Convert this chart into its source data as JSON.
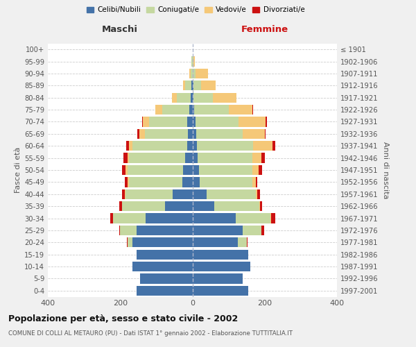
{
  "age_groups": [
    "0-4",
    "5-9",
    "10-14",
    "15-19",
    "20-24",
    "25-29",
    "30-34",
    "35-39",
    "40-44",
    "45-49",
    "50-54",
    "55-59",
    "60-64",
    "65-69",
    "70-74",
    "75-79",
    "80-84",
    "85-89",
    "90-94",
    "95-99",
    "100+"
  ],
  "birth_years": [
    "1997-2001",
    "1992-1996",
    "1987-1991",
    "1982-1986",
    "1977-1981",
    "1972-1976",
    "1967-1971",
    "1962-1966",
    "1957-1961",
    "1952-1956",
    "1947-1951",
    "1942-1946",
    "1937-1941",
    "1932-1936",
    "1927-1931",
    "1922-1926",
    "1917-1921",
    "1912-1916",
    "1907-1911",
    "1902-1906",
    "≤ 1901"
  ],
  "maschi": {
    "celibi": [
      155,
      145,
      165,
      155,
      165,
      155,
      130,
      75,
      55,
      28,
      25,
      20,
      15,
      12,
      15,
      8,
      4,
      2,
      0,
      0,
      0
    ],
    "coniugati": [
      0,
      0,
      0,
      0,
      15,
      45,
      90,
      120,
      130,
      148,
      155,
      155,
      150,
      120,
      105,
      75,
      40,
      18,
      5,
      2,
      0
    ],
    "vedovi": [
      0,
      0,
      0,
      0,
      0,
      0,
      0,
      0,
      2,
      3,
      5,
      5,
      10,
      15,
      18,
      20,
      12,
      5,
      3,
      0,
      0
    ],
    "divorziati": [
      0,
      0,
      0,
      0,
      2,
      3,
      8,
      8,
      8,
      8,
      10,
      10,
      8,
      5,
      2,
      0,
      0,
      0,
      0,
      0,
      0
    ]
  },
  "femmine": {
    "nubili": [
      155,
      140,
      160,
      155,
      125,
      140,
      120,
      60,
      40,
      20,
      18,
      15,
      12,
      10,
      8,
      5,
      2,
      2,
      0,
      0,
      0
    ],
    "coniugate": [
      0,
      0,
      0,
      0,
      25,
      50,
      95,
      125,
      135,
      145,
      148,
      150,
      155,
      130,
      120,
      95,
      55,
      22,
      8,
      2,
      0
    ],
    "vedove": [
      0,
      0,
      0,
      0,
      0,
      0,
      2,
      2,
      5,
      10,
      18,
      25,
      55,
      60,
      75,
      65,
      65,
      40,
      35,
      5,
      0
    ],
    "divorziate": [
      0,
      0,
      0,
      0,
      2,
      8,
      12,
      5,
      8,
      5,
      8,
      10,
      8,
      3,
      3,
      2,
      0,
      0,
      0,
      0,
      0
    ]
  },
  "colors": {
    "celibi": "#4472a8",
    "coniugati": "#c5d8a0",
    "vedovi": "#f5c878",
    "divorziati": "#cc1111"
  },
  "title": "Popolazione per età, sesso e stato civile - 2002",
  "subtitle": "COMUNE DI COLLI AL METAURO (PU) - Dati ISTAT 1° gennaio 2002 - Elaborazione TUTTITALIA.IT",
  "xlabel_left": "Maschi",
  "xlabel_right": "Femmine",
  "ylabel_left": "Fasce di età",
  "ylabel_right": "Anni di nascita",
  "xlim": 400,
  "bg_color": "#f0f0f0",
  "plot_bg": "#ffffff",
  "legend_labels": [
    "Celibi/Nubili",
    "Coniugati/e",
    "Vedovi/e",
    "Divorziati/e"
  ]
}
